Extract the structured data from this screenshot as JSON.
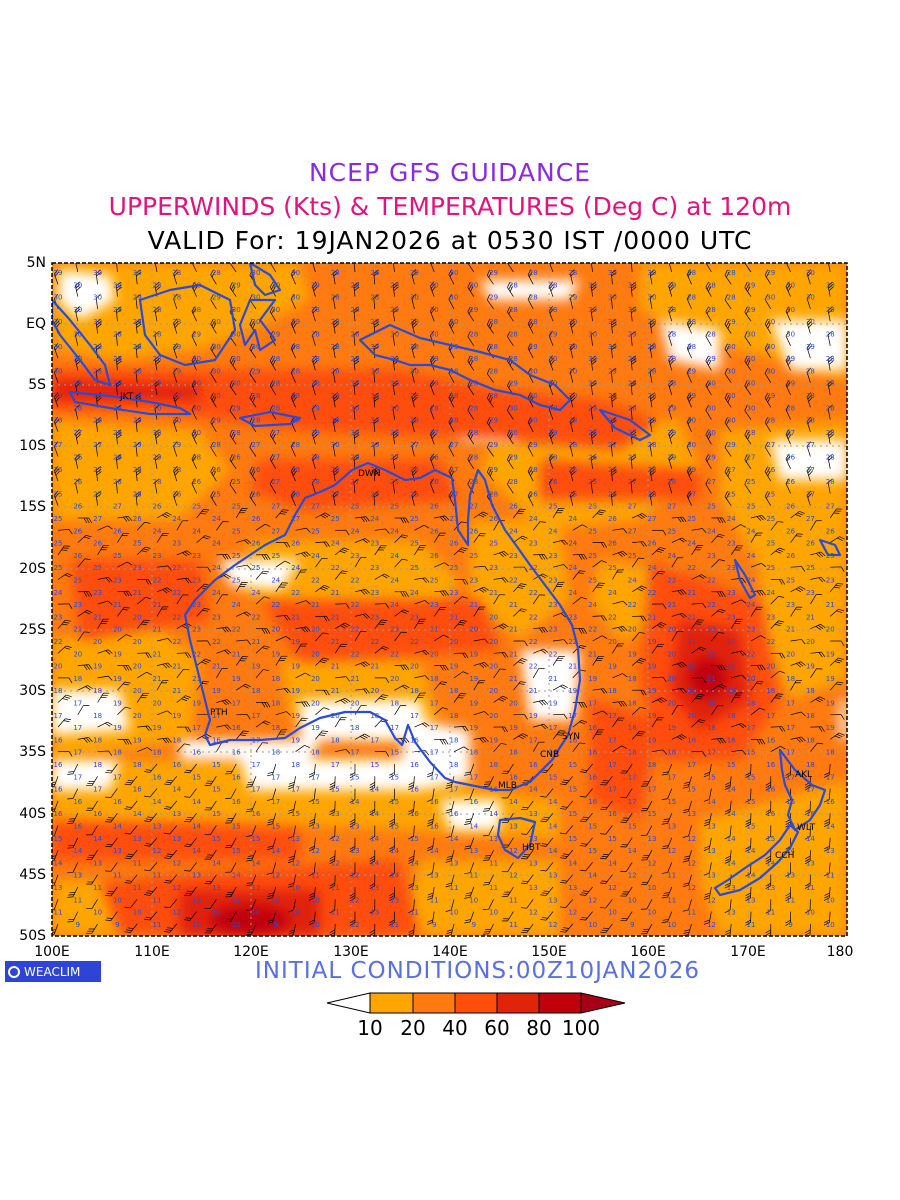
{
  "header": {
    "line1": "NCEP GFS GUIDANCE",
    "line2": "UPPERWINDS (Kts) & TEMPERATURES (Deg C) at 120m",
    "line3": "VALID For: 19JAN2026 at 0530 IST /0000 UTC"
  },
  "map": {
    "lat_labels": [
      "5N",
      "EQ",
      "5S",
      "10S",
      "15S",
      "20S",
      "25S",
      "30S",
      "35S",
      "40S",
      "45S",
      "50S"
    ],
    "lon_labels": [
      "100E",
      "110E",
      "120E",
      "130E",
      "140E",
      "150E",
      "160E",
      "170E",
      "180"
    ],
    "stations": [
      {
        "id": "JKT",
        "label": "JKT"
      },
      {
        "id": "DWN",
        "label": "DWN"
      },
      {
        "id": "PTH",
        "label": "PTH"
      },
      {
        "id": "SYN",
        "label": "SYN"
      },
      {
        "id": "CNB",
        "label": "CNB"
      },
      {
        "id": "MLB",
        "label": "MLB"
      },
      {
        "id": "HBT",
        "label": "HBT"
      },
      {
        "id": "AKL",
        "label": "AKL"
      },
      {
        "id": "WLT",
        "label": "WLT"
      },
      {
        "id": "CCH",
        "label": "CCH"
      }
    ]
  },
  "footer": {
    "logo_text": "WEACLIM",
    "initial_conditions": "INITIAL  CONDITIONS:00Z10JAN2026"
  },
  "colorbar": {
    "labels": [
      "10",
      "20",
      "40",
      "60",
      "80",
      "100"
    ],
    "colors": [
      "#ffffff",
      "#ffa500",
      "#ff7a10",
      "#ff4e0a",
      "#e0240a",
      "#c0000a",
      "#a80016"
    ]
  },
  "colors": {
    "coastline": "#2a4bd6",
    "temperature_text": "#2a4bd6",
    "barb": "#000000",
    "wind_10_20": "#ffa500",
    "wind_20_40": "#ff7a10",
    "wind_40_60": "#ff4e0a",
    "wind_60_80": "#e0240a"
  }
}
